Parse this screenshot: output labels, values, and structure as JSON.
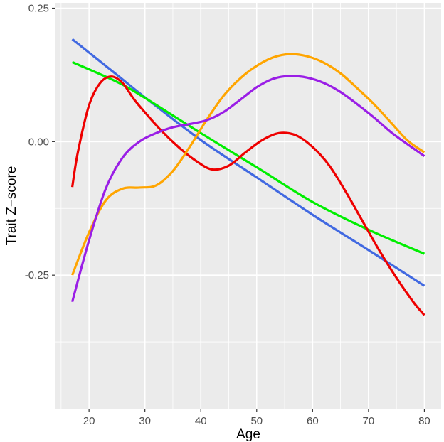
{
  "chart_data": {
    "type": "line",
    "title": "",
    "xlabel": "Age",
    "ylabel": "Trait Z−score",
    "xlim": [
      14,
      83
    ],
    "ylim": [
      -0.5,
      0.26
    ],
    "x_ticks": [
      20,
      30,
      40,
      50,
      60,
      70,
      80
    ],
    "x_tick_labels": [
      "20",
      "30",
      "40",
      "50",
      "60",
      "70",
      "80"
    ],
    "y_ticks": [
      0.25,
      0.0,
      -0.25
    ],
    "y_tick_labels": [
      "0.25",
      "0.00",
      "-0.25"
    ],
    "grid": true,
    "legend": "none",
    "colors": {
      "panel_bg": "#ebebeb",
      "grid": "#ffffff"
    },
    "series": [
      {
        "color": "#4169e1",
        "x": [
          17,
          25,
          30,
          40,
          50,
          60,
          70,
          80
        ],
        "y": [
          0.192,
          0.125,
          0.083,
          0.003,
          -0.067,
          -0.137,
          -0.203,
          -0.27
        ]
      },
      {
        "color": "#00ee00",
        "x": [
          17,
          25,
          30,
          40,
          50,
          60,
          70,
          80
        ],
        "y": [
          0.149,
          0.112,
          0.082,
          0.016,
          -0.048,
          -0.113,
          -0.165,
          -0.21
        ]
      },
      {
        "color": "#ee0000",
        "x": [
          17,
          18,
          20,
          22,
          24,
          26,
          28,
          30,
          33,
          36,
          39,
          42,
          45,
          48,
          51,
          54,
          57,
          60,
          63,
          66,
          69,
          72,
          75,
          78,
          80
        ],
        "y": [
          -0.085,
          -0.02,
          0.068,
          0.11,
          0.122,
          0.11,
          0.08,
          0.055,
          0.02,
          -0.01,
          -0.035,
          -0.052,
          -0.045,
          -0.02,
          0.003,
          0.016,
          0.012,
          -0.01,
          -0.045,
          -0.095,
          -0.15,
          -0.205,
          -0.255,
          -0.3,
          -0.325
        ]
      },
      {
        "color": "#ffa500",
        "x": [
          17,
          20,
          23,
          26,
          29,
          32,
          35,
          38,
          41,
          44,
          47,
          50,
          53,
          56,
          59,
          62,
          65,
          68,
          71,
          74,
          77,
          80
        ],
        "y": [
          -0.25,
          -0.17,
          -0.11,
          -0.088,
          -0.086,
          -0.082,
          -0.055,
          -0.01,
          0.04,
          0.085,
          0.118,
          0.142,
          0.158,
          0.164,
          0.16,
          0.148,
          0.128,
          0.1,
          0.07,
          0.036,
          0.002,
          -0.02
        ]
      },
      {
        "color": "#9a1ee6",
        "x": [
          17,
          20,
          23,
          26,
          29,
          32,
          35,
          38,
          41,
          44,
          47,
          50,
          53,
          56,
          59,
          62,
          65,
          68,
          71,
          74,
          77,
          80
        ],
        "y": [
          -0.3,
          -0.185,
          -0.088,
          -0.03,
          0.0,
          0.016,
          0.027,
          0.033,
          0.04,
          0.055,
          0.078,
          0.102,
          0.118,
          0.123,
          0.12,
          0.11,
          0.093,
          0.07,
          0.045,
          0.018,
          -0.005,
          -0.027
        ]
      }
    ]
  }
}
